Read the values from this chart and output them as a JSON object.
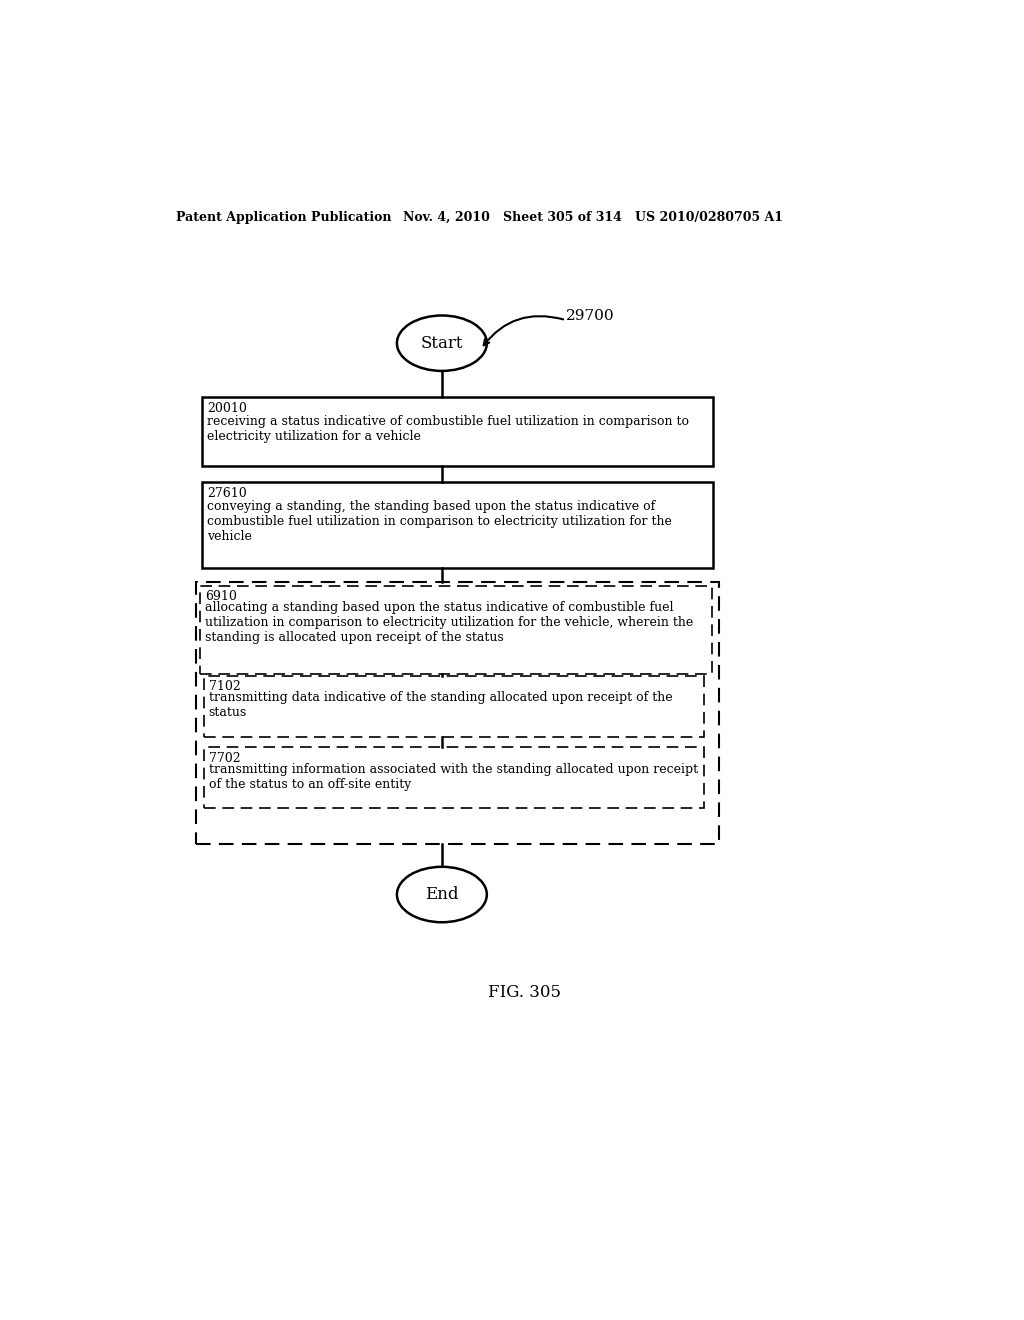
{
  "header_left": "Patent Application Publication",
  "header_middle": "Nov. 4, 2010   Sheet 305 of 314   US 2010/0280705 A1",
  "fig_label": "FIG. 305",
  "diagram_label": "29700",
  "start_label": "Start",
  "end_label": "End",
  "box1_id": "20010",
  "box1_text": "receiving a status indicative of combustible fuel utilization in comparison to\nelectricity utilization for a vehicle",
  "box2_id": "27610",
  "box2_text": "conveying a standing, the standing based upon the status indicative of\ncombustible fuel utilization in comparison to electricity utilization for the\nvehicle",
  "outer_dashed_label": "6910",
  "outer_dashed_text": "allocating a standing based upon the status indicative of combustible fuel\nutilization in comparison to electricity utilization for the vehicle, wherein the\nstanding is allocated upon receipt of the status",
  "inner_dashed1_label": "7102",
  "inner_dashed1_text": "transmitting data indicative of the standing allocated upon receipt of the\nstatus",
  "inner_dashed2_label": "7702",
  "inner_dashed2_text": "transmitting information associated with the standing allocated upon receipt\nof the status to an off-site entity",
  "bg_color": "#ffffff",
  "text_color": "#000000"
}
